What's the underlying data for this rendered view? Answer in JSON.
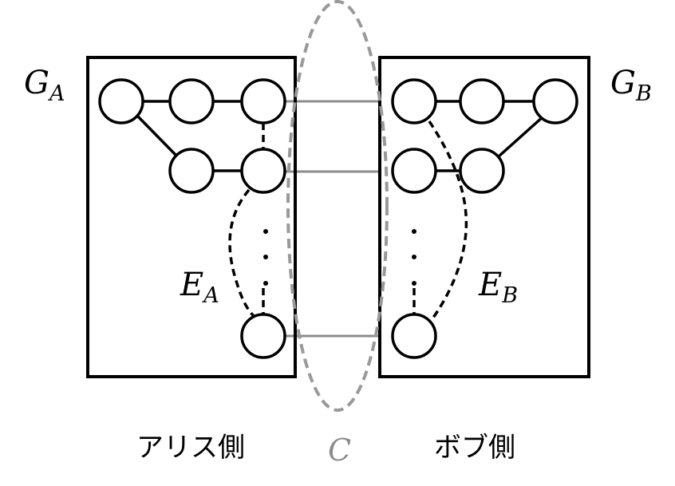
{
  "graph_a": {
    "symbol": "G",
    "subscript": "A"
  },
  "graph_b": {
    "symbol": "G",
    "subscript": "B"
  },
  "edges_a": {
    "symbol": "E",
    "subscript": "A"
  },
  "edges_b": {
    "symbol": "E",
    "subscript": "B"
  },
  "cut": {
    "symbol": "C"
  },
  "side_labels": {
    "alice": "アリス側",
    "bob": "ボブ側"
  },
  "colors": {
    "stroke": "#000000",
    "link": "#8c8c8c",
    "cut": "#999999",
    "background": "#ffffff"
  }
}
